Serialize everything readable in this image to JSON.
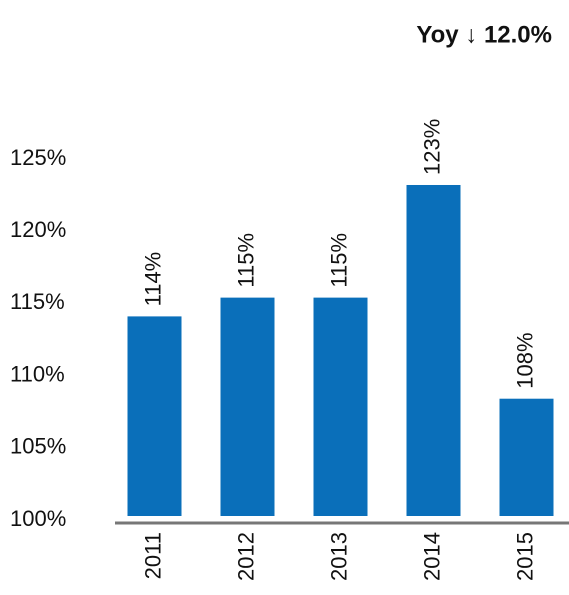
{
  "chart_data": {
    "type": "bar",
    "annotation": "Yoy ↓ 12.0%",
    "categories": [
      "2011",
      "2012",
      "2013",
      "2014",
      "2015"
    ],
    "values": [
      114.1,
      115.4,
      115.4,
      123.2,
      108.4
    ],
    "value_labels": [
      "114%",
      "115%",
      "115%",
      "123%",
      "108%"
    ],
    "color": "#0a6fba",
    "ylim": [
      100,
      125
    ],
    "yticks": [
      {
        "value": 100,
        "label": "100%"
      },
      {
        "value": 105,
        "label": "105%"
      },
      {
        "value": 110,
        "label": "110%"
      },
      {
        "value": 115,
        "label": "115%"
      },
      {
        "value": 120,
        "label": "120%"
      },
      {
        "value": 125,
        "label": "125%"
      }
    ],
    "grid": false
  }
}
